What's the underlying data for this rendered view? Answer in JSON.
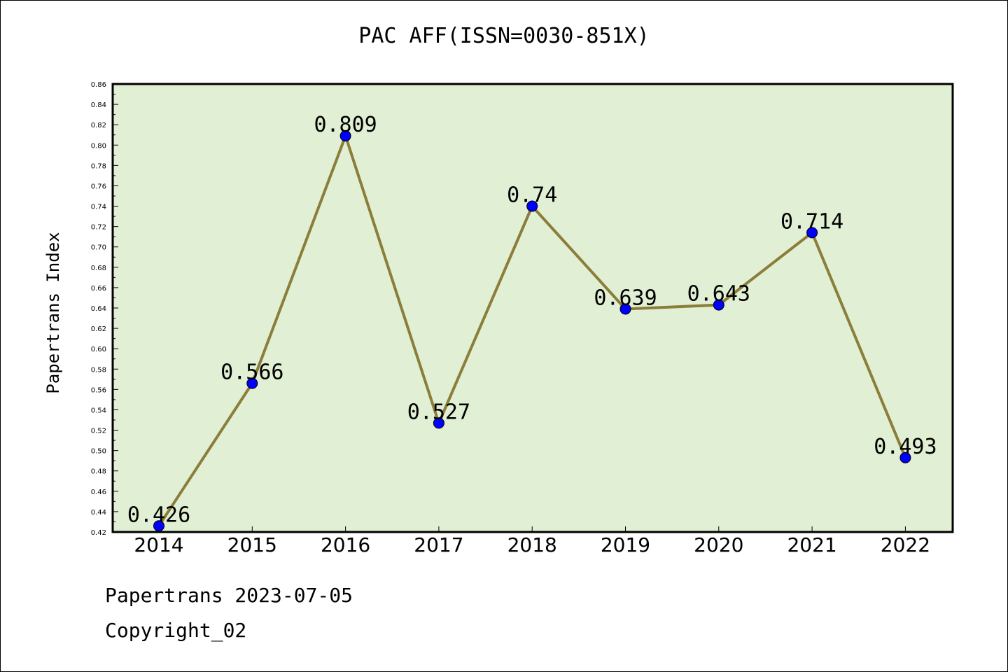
{
  "title": "PAC AFF(ISSN=0030-851X)",
  "footer": {
    "date_line": "Papertrans 2023-07-05",
    "copyright": "Copyright_02"
  },
  "colors": {
    "plot_background": "#e1efd4",
    "line": "#8b7d3a",
    "marker": "#0000ff"
  },
  "chart_data": {
    "type": "line",
    "title": "PAC AFF(ISSN=0030-851X)",
    "xlabel": "",
    "ylabel": "Papertrans Index",
    "categories": [
      "2014",
      "2015",
      "2016",
      "2017",
      "2018",
      "2019",
      "2020",
      "2021",
      "2022"
    ],
    "series": [
      {
        "values": [
          0.426,
          0.566,
          0.809,
          0.527,
          0.74,
          0.639,
          0.643,
          0.714,
          0.493
        ],
        "labels": [
          "0.426",
          "0.566",
          "0.809",
          "0.527",
          "0.74",
          "0.639",
          "0.643",
          "0.714",
          "0.493"
        ]
      }
    ],
    "ylim": [
      0.42,
      0.86
    ],
    "yticks": [
      "0.42",
      "0.44",
      "0.46",
      "0.48",
      "0.50",
      "0.52",
      "0.54",
      "0.56",
      "0.58",
      "0.60",
      "0.62",
      "0.64",
      "0.66",
      "0.68",
      "0.70",
      "0.72",
      "0.74",
      "0.76",
      "0.78",
      "0.80",
      "0.82",
      "0.84",
      "0.86"
    ],
    "grid": false,
    "legend": "none"
  }
}
